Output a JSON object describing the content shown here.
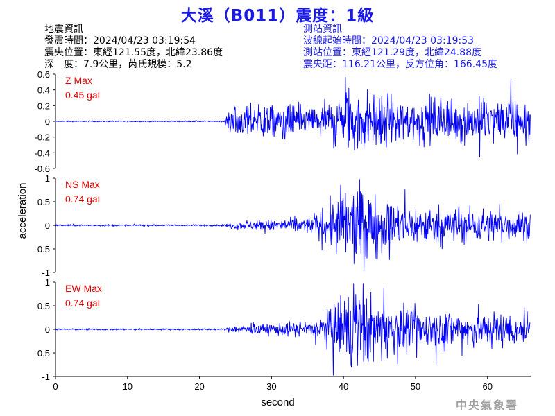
{
  "title": "大溪（B011）震度：1級",
  "quake_info": {
    "heading": "地震資訊",
    "origin_time": "發震時間：2024/04/23 03:19:54",
    "epicenter": "震央位置：東經121.55度，北緯23.86度",
    "depth_magnitude": "深　度：7.9公里，芮氏規模：5.2"
  },
  "station_info": {
    "heading": "測站資訊",
    "wave_start": "波線起始時間：2024/04/23 03:19:53",
    "station_location": "測站位置：東經121.29度，北緯24.88度",
    "distance_azimuth": "震央距：116.21公里，反方位角：166.45度"
  },
  "watermark": "中央氣象署",
  "chart_data": {
    "type": "line",
    "xlabel": "second",
    "ylabel": "acceleration",
    "xlim": [
      0,
      66
    ],
    "xticks": [
      0,
      10,
      20,
      30,
      40,
      50,
      60
    ],
    "line_color": "#0000ff",
    "label_color": "#e00000",
    "series": [
      {
        "name": "Z",
        "max_label": "Z Max",
        "max_value": "0.45 gal",
        "ylim": [
          -0.6,
          0.6
        ],
        "yticks": [
          -0.6,
          -0.4,
          -0.2,
          0,
          0.2,
          0.4,
          0.6
        ],
        "onset_s": 23.5,
        "envelope": [
          [
            0,
            0.005
          ],
          [
            23.3,
            0.005
          ],
          [
            24.5,
            0.14
          ],
          [
            30,
            0.16
          ],
          [
            36,
            0.14
          ],
          [
            38,
            0.2
          ],
          [
            41,
            0.32
          ],
          [
            45,
            0.24
          ],
          [
            50,
            0.2
          ],
          [
            55,
            0.2
          ],
          [
            60,
            0.2
          ],
          [
            66,
            0.18
          ]
        ]
      },
      {
        "name": "NS",
        "max_label": "NS Max",
        "max_value": "0.74 gal",
        "ylim": [
          -1,
          1
        ],
        "yticks": [
          -1,
          -0.5,
          0,
          0.5,
          1
        ],
        "onset_s": 23.5,
        "envelope": [
          [
            0,
            0.012
          ],
          [
            23.3,
            0.012
          ],
          [
            25,
            0.06
          ],
          [
            32,
            0.1
          ],
          [
            36,
            0.14
          ],
          [
            38,
            0.3
          ],
          [
            40,
            0.62
          ],
          [
            43,
            0.55
          ],
          [
            46,
            0.38
          ],
          [
            50,
            0.3
          ],
          [
            55,
            0.28
          ],
          [
            60,
            0.25
          ],
          [
            66,
            0.2
          ]
        ]
      },
      {
        "name": "EW",
        "max_label": "EW Max",
        "max_value": "0.74 gal",
        "ylim": [
          -1,
          1
        ],
        "yticks": [
          -1,
          -0.5,
          0,
          0.5,
          1
        ],
        "onset_s": 23.5,
        "envelope": [
          [
            0,
            0.012
          ],
          [
            23.3,
            0.012
          ],
          [
            26,
            0.06
          ],
          [
            32,
            0.1
          ],
          [
            36,
            0.14
          ],
          [
            38,
            0.3
          ],
          [
            41,
            0.62
          ],
          [
            43,
            0.55
          ],
          [
            46,
            0.4
          ],
          [
            50,
            0.3
          ],
          [
            55,
            0.3
          ],
          [
            60,
            0.28
          ],
          [
            66,
            0.24
          ]
        ]
      }
    ]
  }
}
